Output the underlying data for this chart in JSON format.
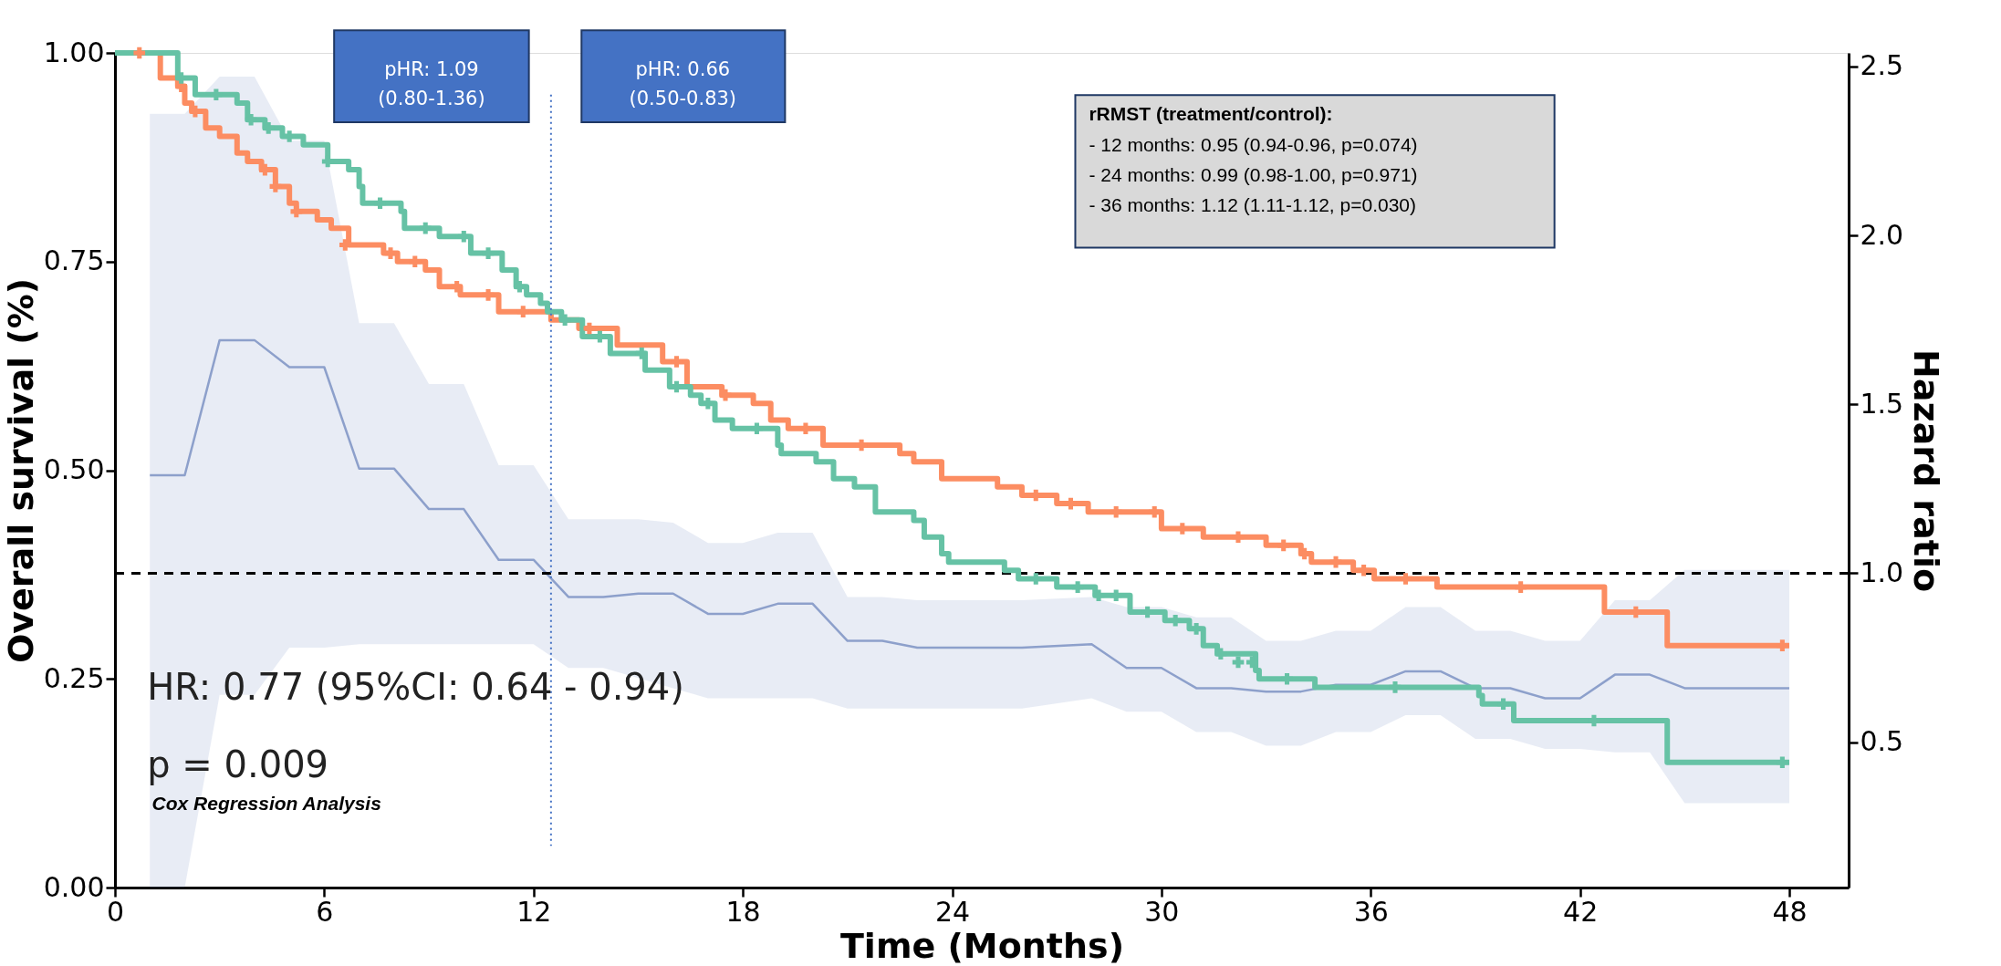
{
  "chart_data": {
    "type": "line",
    "xlabel": "Time (Months)",
    "ylabel": "Overall survival (%)",
    "y2label": "Hazard ratio",
    "xlim": [
      0,
      49.7
    ],
    "xticks": [
      0,
      6,
      12,
      18,
      24,
      30,
      36,
      42,
      48
    ],
    "ylim": [
      0,
      1
    ],
    "yticks": [
      {
        "value": 0,
        "label": "0.00"
      },
      {
        "value": 0.25,
        "label": "0.25"
      },
      {
        "value": 0.5,
        "label": "0.50"
      },
      {
        "value": 0.75,
        "label": "0.75"
      },
      {
        "value": 1,
        "label": "1.00"
      }
    ],
    "y2lim": [
      0.07,
      2.54
    ],
    "y2ticks": [
      0.5,
      {
        "value": 1,
        "label": "1.0"
      },
      1.5,
      {
        "value": 2,
        "label": "2.0"
      },
      2.5
    ],
    "grid": false,
    "series": [
      {
        "axis": "y2",
        "color": "#8da0cb",
        "x": [
          1,
          2,
          3,
          4,
          5,
          6,
          7,
          8,
          9,
          10,
          11,
          12,
          13,
          14,
          15,
          16,
          17,
          18,
          19,
          20,
          21,
          22,
          23,
          26,
          28,
          29,
          30,
          31,
          32,
          33,
          34,
          35,
          36,
          37,
          38,
          39,
          40,
          41,
          42,
          43,
          44,
          45,
          48
        ],
        "values": [
          1.29,
          1.29,
          1.69,
          1.69,
          1.61,
          1.61,
          1.31,
          1.31,
          1.19,
          1.19,
          1.04,
          1.04,
          0.93,
          0.93,
          0.94,
          0.94,
          0.88,
          0.88,
          0.91,
          0.91,
          0.8,
          0.8,
          0.78,
          0.78,
          0.79,
          0.72,
          0.72,
          0.66,
          0.66,
          0.65,
          0.65,
          0.67,
          0.67,
          0.71,
          0.71,
          0.66,
          0.66,
          0.63,
          0.63,
          0.7,
          0.7,
          0.66,
          0.66
        ],
        "lower": [
          0.07,
          0.07,
          0.64,
          0.64,
          0.78,
          0.78,
          0.79,
          0.79,
          0.79,
          0.79,
          0.79,
          0.79,
          0.72,
          0.72,
          0.69,
          0.66,
          0.63,
          0.63,
          0.63,
          0.63,
          0.6,
          0.6,
          0.6,
          0.6,
          0.63,
          0.59,
          0.59,
          0.53,
          0.53,
          0.49,
          0.49,
          0.53,
          0.53,
          0.58,
          0.58,
          0.51,
          0.51,
          0.48,
          0.48,
          0.47,
          0.47,
          0.32,
          0.32
        ],
        "upper": [
          2.36,
          2.36,
          2.47,
          2.47,
          2.28,
          2.28,
          1.74,
          1.74,
          1.56,
          1.56,
          1.32,
          1.32,
          1.16,
          1.16,
          1.16,
          1.15,
          1.09,
          1.09,
          1.12,
          1.12,
          0.93,
          0.93,
          0.92,
          0.92,
          0.93,
          0.9,
          0.9,
          0.87,
          0.87,
          0.8,
          0.8,
          0.83,
          0.83,
          0.9,
          0.9,
          0.83,
          0.83,
          0.8,
          0.8,
          0.92,
          0.92,
          1.01,
          1.01
        ]
      },
      {
        "type": "step",
        "color": "#fc8d62",
        "x": [
          0,
          1.3,
          1.8,
          2.0,
          2.2,
          2.6,
          3.0,
          3.5,
          3.8,
          4.2,
          4.6,
          5.0,
          5.2,
          5.8,
          6.2,
          6.7,
          7.7,
          8.1,
          8.9,
          9.3,
          9.9,
          11.0,
          12.5,
          13.3,
          14.4,
          15.7,
          16.4,
          17.4,
          18.3,
          18.8,
          19.3,
          20.3,
          22.5,
          22.9,
          23.7,
          25.3,
          26.0,
          27.0,
          27.9,
          30.0,
          31.2,
          33.0,
          34.0,
          34.3,
          35.5,
          36.1,
          37.9,
          42.7,
          44.5,
          48
        ],
        "values": [
          1.0,
          0.97,
          0.96,
          0.94,
          0.93,
          0.91,
          0.9,
          0.88,
          0.87,
          0.86,
          0.84,
          0.82,
          0.81,
          0.8,
          0.79,
          0.77,
          0.76,
          0.75,
          0.74,
          0.72,
          0.71,
          0.69,
          0.68,
          0.67,
          0.65,
          0.63,
          0.6,
          0.59,
          0.58,
          0.56,
          0.55,
          0.53,
          0.52,
          0.51,
          0.49,
          0.48,
          0.47,
          0.46,
          0.45,
          0.43,
          0.42,
          0.41,
          0.4,
          0.39,
          0.38,
          0.37,
          0.36,
          0.33,
          0.29,
          0.29
        ]
      },
      {
        "type": "step",
        "color": "#66c2a5",
        "x": [
          0,
          1.8,
          2.3,
          3.5,
          3.8,
          4.3,
          4.8,
          5.4,
          6.1,
          6.7,
          7.0,
          7.1,
          8.2,
          8.3,
          9.3,
          10.2,
          11.1,
          11.5,
          11.8,
          12.2,
          12.4,
          12.8,
          13.4,
          14.2,
          15.2,
          15.9,
          16.5,
          16.8,
          17.2,
          17.7,
          19.0,
          19.1,
          20.1,
          20.6,
          21.2,
          21.8,
          22.9,
          23.2,
          23.7,
          23.9,
          25.5,
          25.9,
          27.0,
          28.1,
          29.1,
          30.1,
          30.8,
          31.2,
          31.6,
          32.7,
          32.8,
          34.4,
          39.1,
          39.2,
          40.1,
          44.5,
          48
        ],
        "values": [
          1.0,
          0.97,
          0.95,
          0.94,
          0.92,
          0.91,
          0.9,
          0.89,
          0.87,
          0.86,
          0.84,
          0.82,
          0.81,
          0.79,
          0.78,
          0.76,
          0.74,
          0.72,
          0.71,
          0.7,
          0.69,
          0.68,
          0.66,
          0.64,
          0.62,
          0.6,
          0.59,
          0.58,
          0.56,
          0.55,
          0.53,
          0.52,
          0.51,
          0.49,
          0.48,
          0.45,
          0.44,
          0.42,
          0.4,
          0.39,
          0.38,
          0.37,
          0.36,
          0.35,
          0.33,
          0.32,
          0.31,
          0.29,
          0.28,
          0.26,
          0.25,
          0.24,
          0.23,
          0.22,
          0.2,
          0.15,
          0.15
        ]
      },
      {
        "type": "scatter",
        "marker": "cross",
        "color": "#fc8d62",
        "x": [
          0.7,
          1.9,
          2.3,
          4.3,
          4.6,
          5.2,
          6.6,
          7.9,
          8.6,
          9.8,
          10.7,
          11.7,
          13.6,
          16.1,
          17.5,
          19.8,
          21.4,
          26.4,
          27.4,
          28.7,
          29.8,
          30.6,
          32.2,
          33.5,
          34.1,
          35.0,
          35.8,
          37.0,
          40.3,
          43.6,
          47.8
        ],
        "values": [
          1.0,
          0.96,
          0.93,
          0.86,
          0.84,
          0.81,
          0.77,
          0.76,
          0.75,
          0.72,
          0.71,
          0.69,
          0.67,
          0.63,
          0.59,
          0.55,
          0.53,
          0.47,
          0.46,
          0.45,
          0.45,
          0.43,
          0.42,
          0.41,
          0.4,
          0.39,
          0.38,
          0.37,
          0.36,
          0.33,
          0.29
        ]
      },
      {
        "type": "scatter",
        "marker": "cross",
        "color": "#66c2a5",
        "x": [
          1.9,
          2.9,
          3.9,
          4.4,
          5.0,
          6.1,
          7.6,
          8.9,
          10.0,
          10.7,
          11.6,
          12.9,
          13.9,
          15.1,
          16.1,
          17.0,
          18.4,
          26.4,
          27.6,
          28.2,
          28.7,
          29.6,
          30.4,
          31.0,
          31.7,
          32.2,
          32.6,
          33.6,
          36.7,
          39.8,
          42.4,
          47.8
        ],
        "values": [
          0.97,
          0.95,
          0.92,
          0.91,
          0.9,
          0.87,
          0.82,
          0.79,
          0.78,
          0.76,
          0.72,
          0.68,
          0.66,
          0.64,
          0.6,
          0.58,
          0.55,
          0.37,
          0.36,
          0.35,
          0.35,
          0.33,
          0.32,
          0.31,
          0.28,
          0.27,
          0.27,
          0.25,
          0.24,
          0.22,
          0.2,
          0.15
        ]
      }
    ],
    "ref_lines": [
      {
        "axis": "y2",
        "value": 1.0,
        "line_style": "dashed",
        "color": "#000000"
      },
      {
        "axis": "x",
        "value": 12.5,
        "line_style": "dotted",
        "color": "#4472c4"
      }
    ],
    "annotations": [
      "pHR: 1.09\n(0.80-1.36)",
      "pHR: 0.66\n(0.50-0.83)",
      "rRMST (treatment/control):",
      "- 12 months: 0.95 (0.94-0.96, p=0.074)",
      "- 24 months: 0.99 (0.98-1.00, p=0.971)",
      "- 36 months: 1.12 (1.11-1.12, p=0.030)",
      "HR: 0.77 (95%CI: 0.64 - 0.94)",
      "p = 0.009",
      "Cox Regression Analysis"
    ]
  }
}
